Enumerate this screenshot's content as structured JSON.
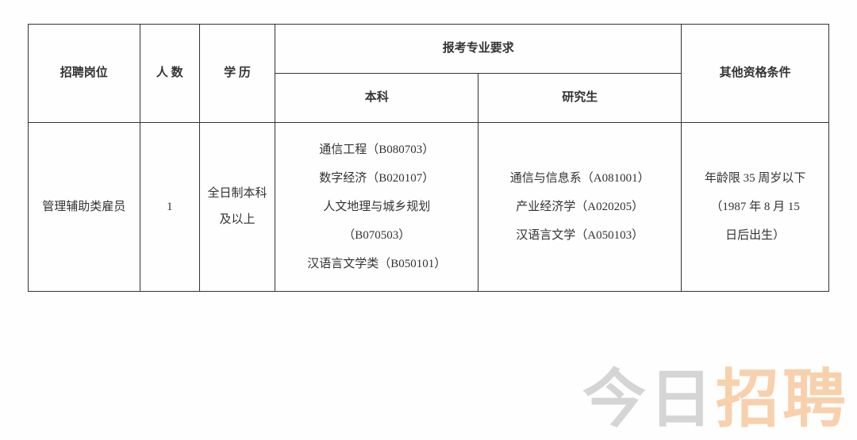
{
  "headers": {
    "position": "招聘岗位",
    "count": "人 数",
    "education": "学 历",
    "major_req": "报考专业要求",
    "bachelor": "本科",
    "graduate": "研究生",
    "other": "其他资格条件"
  },
  "row": {
    "position": "管理辅助类雇员",
    "count": "1",
    "education": "全日制本科及以上",
    "bachelor_lines": [
      "通信工程（B080703）",
      "数字经济（B020107）",
      "人文地理与城乡规划",
      "（B070503）",
      "汉语言文学类（B050101）"
    ],
    "graduate_lines": [
      "通信与信息系（A081001）",
      "产业经济学（A020205）",
      "汉语言文学（A050103）"
    ],
    "other_lines": [
      "年龄限 35 周岁以下",
      "（1987 年 8 月 15",
      "日后出生）"
    ]
  },
  "watermark": {
    "part1": "今日",
    "part2": "招聘"
  },
  "styling": {
    "border_color": "#333333",
    "text_color": "#333333",
    "background_color": "#fefefe",
    "font_family": "SimSun",
    "cell_fontsize": 15,
    "watermark_fontsize": 80,
    "watermark_gray": "rgba(120,120,120,0.3)",
    "watermark_orange": "rgba(240,140,50,0.4)"
  }
}
